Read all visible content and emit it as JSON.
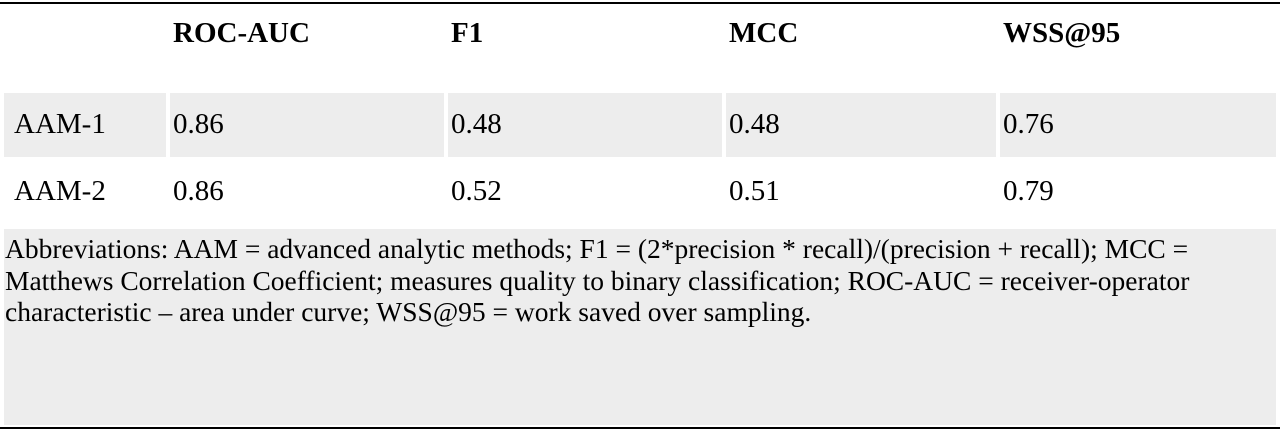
{
  "table": {
    "columns": [
      "",
      "ROC-AUC",
      "F1",
      "MCC",
      "WSS@95"
    ],
    "rows": [
      [
        "AAM-1",
        "0.86",
        "0.48",
        "0.48",
        "0.76"
      ],
      [
        "AAM-2",
        "0.86",
        "0.52",
        "0.51",
        "0.79"
      ]
    ],
    "footnote": "Abbreviations: AAM = advanced analytic methods; F1 = (2*precision * recall)/(precision + recall); MCC = Matthews Correlation Coefficient; measures quality to binary classification; ROC-AUC = receiver-operator characteristic – area under curve; WSS@95 =  work saved over sampling."
  },
  "colors": {
    "shaded_row": "#ededed",
    "rule": "#000000"
  }
}
